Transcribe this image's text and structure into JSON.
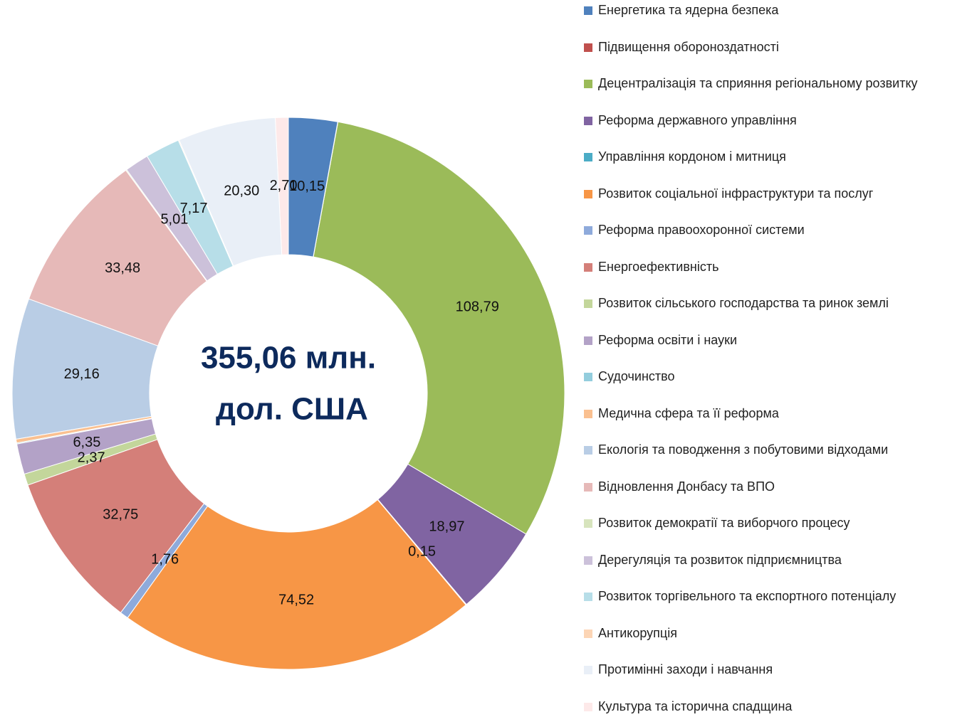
{
  "chart_data": {
    "type": "donut",
    "center_label": [
      "355,06 млн.",
      "дол. США"
    ],
    "categories": [
      "Енергетика та ядерна безпека",
      "Підвищення обороноздатності",
      "Децентралізація та сприяння регіональному розвитку",
      "Реформа державного управління",
      "Управління кордоном і митниця",
      "Розвиток соціальної інфраструктури та послуг",
      "Реформа правоохоронної системи",
      "Енергоефективність",
      "Розвиток сільського господарства та ринок землі",
      "Реформа освіти і науки",
      "Судочинство",
      "Медична сфера та її реформа",
      "Екологія та поводження з побутовими відходами",
      "Відновлення Донбасу та ВПО",
      "Розвиток демократії та виборчого процесу",
      "Дерегуляція та розвиток підприємництва",
      "Розвиток торгівельного та експортного потенціалу",
      "Антикорупція",
      "Протимінні заходи і навчання",
      "Культура та історична спадщина"
    ],
    "values": [
      10.15,
      0.05,
      108.79,
      18.97,
      0.15,
      74.52,
      1.76,
      32.75,
      2.37,
      6.35,
      0.2,
      0.8,
      29.16,
      33.48,
      0.2,
      5.01,
      7.17,
      0.18,
      20.3,
      2.7
    ],
    "value_labels": [
      "10,15",
      null,
      "108,79",
      "18,97",
      "0,15",
      "74,52",
      "1,76",
      "32,75",
      "2,37",
      "6,35",
      null,
      null,
      "29,16",
      "33,48",
      null,
      "5,01",
      "7,17",
      null,
      "20,30",
      "2,70"
    ],
    "colors": [
      "#4f81bd",
      "#c0504d",
      "#9bbb59",
      "#8064a2",
      "#4bacc6",
      "#f79646",
      "#8eaadb",
      "#d47f79",
      "#c3d69b",
      "#b3a2c7",
      "#93cddd",
      "#fac090",
      "#b9cde5",
      "#e6b9b8",
      "#d7e4bd",
      "#ccc1da",
      "#b7dee8",
      "#fcd5b5",
      "#e9eff7",
      "#fde9e9"
    ],
    "legend": "right"
  }
}
